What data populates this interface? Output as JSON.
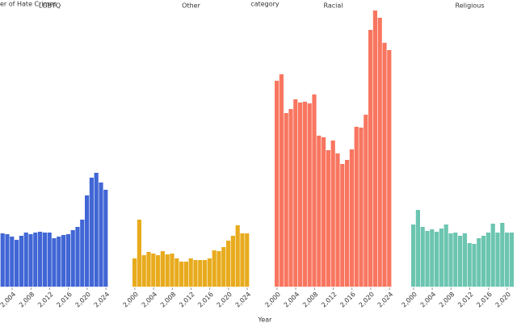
{
  "chart_data": {
    "type": "bar",
    "ylabel": "er of Hate Crimes",
    "legend_title": "category",
    "xlabel": "Year",
    "x": [
      2000,
      2001,
      2002,
      2003,
      2004,
      2005,
      2006,
      2007,
      2008,
      2009,
      2010,
      2011,
      2012,
      2013,
      2014,
      2015,
      2016,
      2017,
      2018,
      2019,
      2020,
      2021,
      2022,
      2023,
      2024
    ],
    "ylim": [
      0,
      350
    ],
    "series": [
      {
        "name": "LGBTQ",
        "color": "#4166d5",
        "values": [
          68,
          72,
          66,
          65,
          62,
          58,
          63,
          67,
          65,
          67,
          68,
          67,
          67,
          60,
          62,
          64,
          65,
          70,
          74,
          83,
          113,
          135,
          141,
          129,
          120
        ],
        "xticks": [
          {
            "value": 2000,
            "label": "2,000"
          },
          {
            "value": 2004,
            "label": "2,004"
          },
          {
            "value": 2008,
            "label": "2,008"
          },
          {
            "value": 2012,
            "label": "2,012"
          },
          {
            "value": 2016,
            "label": "2,016"
          },
          {
            "value": 2020,
            "label": "2,020"
          },
          {
            "value": 2024,
            "label": "2,024"
          }
        ]
      },
      {
        "name": "Other",
        "color": "#e8ab1e",
        "values": [
          35,
          83,
          39,
          43,
          41,
          39,
          44,
          40,
          41,
          35,
          31,
          31,
          35,
          33,
          33,
          33,
          35,
          45,
          44,
          49,
          57,
          63,
          76,
          66,
          66
        ],
        "xticks": [
          {
            "value": 2000,
            "label": "2,000"
          },
          {
            "value": 2004,
            "label": "2,004"
          },
          {
            "value": 2008,
            "label": "2,008"
          },
          {
            "value": 2012,
            "label": "2,012"
          },
          {
            "value": 2016,
            "label": "2,016"
          },
          {
            "value": 2020,
            "label": "2,020"
          },
          {
            "value": 2024,
            "label": "2,024"
          }
        ]
      },
      {
        "name": "Racial",
        "color": "#f87660",
        "values": [
          255,
          263,
          215,
          220,
          232,
          228,
          229,
          227,
          238,
          187,
          185,
          169,
          181,
          165,
          152,
          157,
          170,
          198,
          197,
          213,
          318,
          342,
          333,
          302,
          293
        ],
        "xticks": [
          {
            "value": 2000,
            "label": "2,000"
          },
          {
            "value": 2004,
            "label": "2,004"
          },
          {
            "value": 2008,
            "label": "2,008"
          },
          {
            "value": 2012,
            "label": "2,012"
          },
          {
            "value": 2016,
            "label": "2,016"
          },
          {
            "value": 2020,
            "label": "2,020"
          },
          {
            "value": 2024,
            "label": "2,024"
          }
        ]
      },
      {
        "name": "Religious",
        "color": "#6cc5b0",
        "values": [
          77,
          95,
          74,
          69,
          71,
          68,
          72,
          77,
          66,
          67,
          63,
          66,
          54,
          53,
          60,
          63,
          67,
          78,
          67,
          79,
          67,
          67,
          null,
          null,
          null
        ],
        "xticks": [
          {
            "value": 2000,
            "label": "2,000"
          },
          {
            "value": 2004,
            "label": "2,004"
          },
          {
            "value": 2008,
            "label": "2,008"
          },
          {
            "value": 2012,
            "label": "2,012"
          },
          {
            "value": 2016,
            "label": "2,016"
          },
          {
            "value": 2020,
            "label": "2,020"
          }
        ]
      }
    ]
  }
}
